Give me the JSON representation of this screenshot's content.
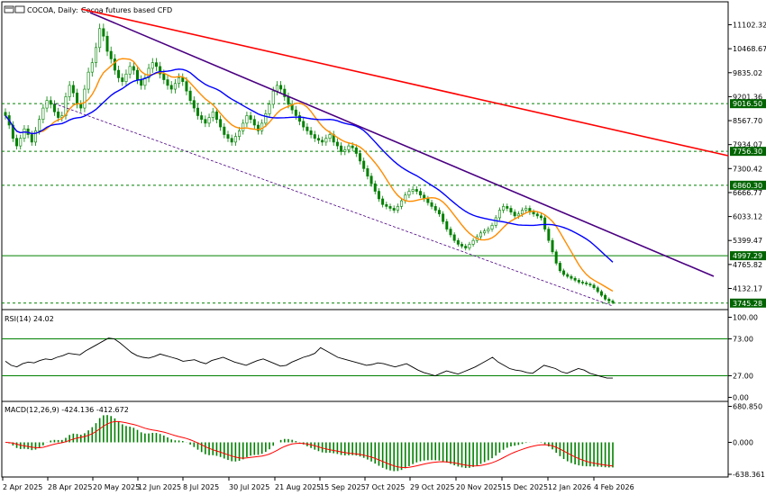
{
  "header": {
    "symbol": "COCOA, Daily:",
    "description": "Cocoa futures based CFD"
  },
  "colors": {
    "background": "#ffffff",
    "candle": "#008000",
    "sma_fast": "#ff8c00",
    "sma_slow": "#0000ff",
    "trend_red": "#ff0000",
    "trend_purple": "#4b0082",
    "level_line": "#008000",
    "label_bg": "#006400",
    "rsi_line": "#000000",
    "macd_hist": "#008000",
    "macd_signal": "#ff0000"
  },
  "price_axis": {
    "ticks": [
      "11102.32",
      "10468.67",
      "9835.02",
      "9201.36",
      "8567.70",
      "7934.07",
      "7300.42",
      "6666.77",
      "6033.12",
      "5399.47",
      "4765.82",
      "4132.17"
    ]
  },
  "levels": [
    {
      "value": 9016.5,
      "label": "9016.50"
    },
    {
      "value": 7756.3,
      "label": "7756.30"
    },
    {
      "value": 6860.3,
      "label": "6860.30"
    },
    {
      "value": 4997.29,
      "label": "4997.29"
    },
    {
      "value": 3745.28,
      "label": "3745.28"
    }
  ],
  "x_axis": {
    "ticks": [
      "2 Apr 2025",
      "28 Apr 2025",
      "20 May 2025",
      "12 Jun 2025",
      "8 Jul 2025",
      "30 Jul 2025",
      "21 Aug 2025",
      "15 Sep 2025",
      "7 Oct 2025",
      "29 Oct 2025",
      "20 Nov 2025",
      "15 Dec 2025",
      "12 Jan 2026",
      "4 Feb 2026"
    ]
  },
  "rsi": {
    "label": "RSI(14) 24.02",
    "ticks": [
      "100.00",
      "73.00",
      "27.00",
      "0.00"
    ],
    "levels": [
      73,
      27
    ],
    "values": [
      45,
      40,
      38,
      42,
      44,
      43,
      46,
      48,
      47,
      50,
      52,
      55,
      54,
      53,
      58,
      62,
      66,
      70,
      74,
      73,
      68,
      62,
      56,
      52,
      50,
      49,
      51,
      54,
      52,
      50,
      48,
      45,
      46,
      47,
      44,
      42,
      46,
      48,
      50,
      47,
      44,
      42,
      40,
      43,
      46,
      48,
      45,
      42,
      39,
      40,
      44,
      47,
      50,
      52,
      55,
      62,
      58,
      54,
      50,
      48,
      46,
      44,
      42,
      40,
      41,
      43,
      42,
      40,
      38,
      40,
      42,
      38,
      34,
      31,
      29,
      27,
      30,
      33,
      31,
      29,
      32,
      35,
      38,
      42,
      46,
      50,
      44,
      40,
      36,
      34,
      33,
      31,
      30,
      35,
      40,
      38,
      36,
      32,
      30,
      33,
      36,
      34,
      30,
      28,
      26,
      24,
      24
    ]
  },
  "macd": {
    "label": "MACD(12,26,9) -424.136 -412.672",
    "ticks": [
      "680.850",
      "0.000",
      "-638.361"
    ]
  },
  "chart_data": {
    "type": "candlestick",
    "title": "COCOA, Daily: Cocoa futures based CFD",
    "ylim": [
      3745.28,
      11200
    ],
    "series": [
      {
        "name": "COCOA",
        "close": [
          8700,
          8450,
          8100,
          7900,
          8100,
          8350,
          8200,
          8000,
          8300,
          8600,
          8900,
          9100,
          9000,
          8800,
          8650,
          8700,
          9200,
          9500,
          9300,
          9000,
          8900,
          9400,
          9850,
          10100,
          10500,
          11000,
          10800,
          10400,
          10200,
          9900,
          9700,
          9600,
          9800,
          10000,
          9900,
          9650,
          9500,
          9700,
          9950,
          10100,
          10000,
          9800,
          9650,
          9500,
          9400,
          9550,
          9700,
          9600,
          9350,
          9100,
          8900,
          8700,
          8600,
          8500,
          8650,
          8800,
          8600,
          8400,
          8200,
          8100,
          8000,
          8150,
          8300,
          8500,
          8700,
          8600,
          8450,
          8300,
          8500,
          8750,
          9000,
          9350,
          9500,
          9400,
          9200,
          9000,
          8850,
          8700,
          8550,
          8400,
          8300,
          8200,
          8100,
          8050,
          8000,
          8100,
          8200,
          8000,
          7900,
          7750,
          7800,
          7900,
          7850,
          7700,
          7500,
          7300,
          7100,
          6900,
          6700,
          6500,
          6350,
          6300,
          6250,
          6200,
          6300,
          6450,
          6600,
          6700,
          6750,
          6700,
          6600,
          6500,
          6400,
          6300,
          6200,
          6100,
          5900,
          5700,
          5550,
          5400,
          5300,
          5250,
          5200,
          5300,
          5400,
          5500,
          5600,
          5650,
          5700,
          5800,
          6000,
          6200,
          6300,
          6250,
          6150,
          6050,
          6100,
          6200,
          6250,
          6150,
          6100,
          6050,
          6000,
          5700,
          5400,
          5100,
          4800,
          4600,
          4500,
          4450,
          4400,
          4350,
          4300,
          4280,
          4250,
          4220,
          4150,
          4050,
          3950,
          3850,
          3800,
          3760
        ]
      }
    ],
    "indicators": [
      {
        "name": "SMA fast",
        "color": "#ff8c00"
      },
      {
        "name": "SMA slow",
        "color": "#0000ff"
      }
    ],
    "levels": [
      9016.5,
      7756.3,
      6860.3,
      4997.29,
      3745.28
    ],
    "grid": false
  }
}
